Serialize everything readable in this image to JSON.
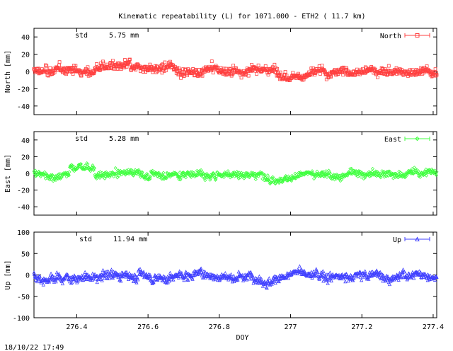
{
  "title": "Kinematic repeatability (L) for 1071.000 - ETH2  ( 11.7 km)",
  "timestamp": "18/10/22 17:49",
  "chart_data": [
    {
      "type": "scatter",
      "ylabel": "North [mm]",
      "ylim": [
        -50,
        50
      ],
      "yticks": [
        "40",
        "20",
        "0",
        "-20",
        "-40"
      ],
      "ytick_values": [
        40,
        20,
        0,
        -20,
        -40
      ],
      "xlim": [
        276.28,
        277.41
      ],
      "std_label": "std",
      "std_value": "5.75 mm",
      "legend": "North",
      "marker": "square",
      "color": "#ff4040",
      "series_std": 5.75
    },
    {
      "type": "scatter",
      "ylabel": "East [mm]",
      "ylim": [
        -50,
        50
      ],
      "yticks": [
        "40",
        "20",
        "0",
        "-20",
        "-40"
      ],
      "ytick_values": [
        40,
        20,
        0,
        -20,
        -40
      ],
      "xlim": [
        276.28,
        277.41
      ],
      "std_label": "std",
      "std_value": "5.28 mm",
      "legend": "East",
      "marker": "diamond",
      "color": "#40ff40",
      "series_std": 5.28
    },
    {
      "type": "scatter",
      "ylabel": "Up [mm]",
      "ylim": [
        -100,
        100
      ],
      "yticks": [
        "100",
        "50",
        "0",
        "-50",
        "-100"
      ],
      "ytick_values": [
        100,
        50,
        0,
        -50,
        -100
      ],
      "xlim": [
        276.28,
        277.41
      ],
      "std_label": "std",
      "std_value": "11.94 mm",
      "legend": "Up",
      "marker": "triangle",
      "color": "#4040ff",
      "series_std": 11.94,
      "xlabel": "DOY",
      "xticks": [
        "276.4",
        "276.6",
        "276.8",
        "277",
        "277.2",
        "277.4"
      ],
      "xtick_values": [
        276.4,
        276.6,
        276.8,
        277.0,
        277.2,
        277.4
      ]
    }
  ]
}
